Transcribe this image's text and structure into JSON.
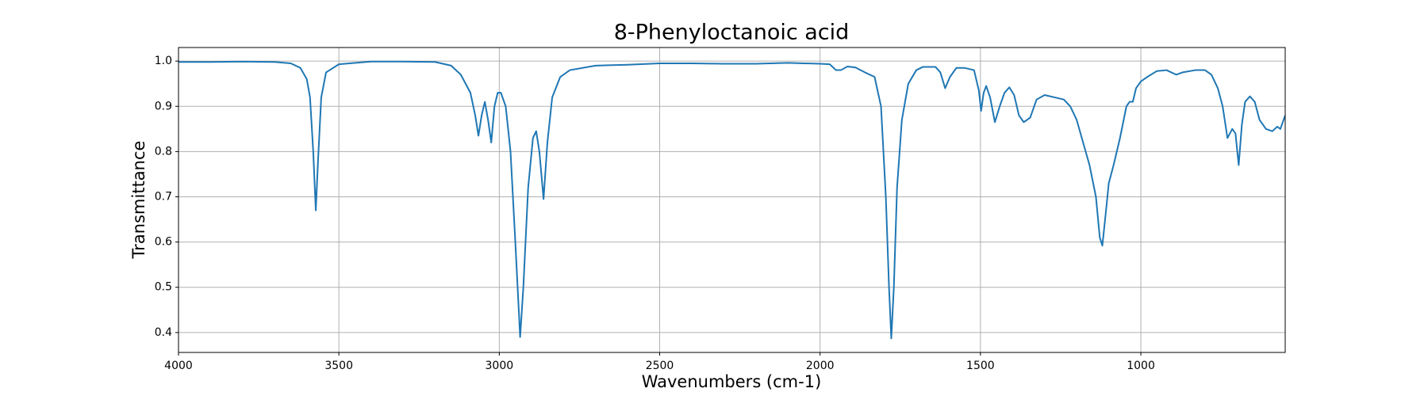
{
  "chart_data": {
    "type": "line",
    "title": "8-Phenyloctanoic acid",
    "x_label": "Wavenumbers (cm-1)",
    "y_label": "Transmittance",
    "color": "#1f77b4",
    "grid": true,
    "xlim": [
      4000,
      550
    ],
    "ylim": [
      0.356,
      1.03
    ],
    "xticks": [
      4000,
      3500,
      3000,
      2500,
      2000,
      1500,
      1000
    ],
    "yticks": [
      0.4,
      0.5,
      0.6,
      0.7,
      0.8,
      0.9,
      {
        "value": 1,
        "label": "1.0"
      }
    ],
    "x": [
      4000,
      3900,
      3800,
      3700,
      3650,
      3620,
      3600,
      3590,
      3580,
      3572,
      3565,
      3555,
      3540,
      3500,
      3400,
      3300,
      3200,
      3150,
      3120,
      3090,
      3075,
      3065,
      3055,
      3045,
      3035,
      3025,
      3015,
      3005,
      2995,
      2980,
      2965,
      2950,
      2935,
      2925,
      2910,
      2895,
      2885,
      2875,
      2862,
      2850,
      2835,
      2810,
      2780,
      2700,
      2600,
      2500,
      2400,
      2300,
      2200,
      2100,
      2000,
      1970,
      1950,
      1935,
      1915,
      1890,
      1860,
      1830,
      1810,
      1795,
      1785,
      1778,
      1770,
      1760,
      1745,
      1725,
      1700,
      1680,
      1640,
      1625,
      1610,
      1595,
      1575,
      1550,
      1520,
      1505,
      1498,
      1490,
      1482,
      1470,
      1455,
      1440,
      1425,
      1410,
      1395,
      1380,
      1365,
      1345,
      1325,
      1300,
      1270,
      1240,
      1220,
      1200,
      1180,
      1160,
      1140,
      1128,
      1120,
      1110,
      1100,
      1085,
      1065,
      1045,
      1035,
      1025,
      1015,
      1000,
      980,
      950,
      920,
      890,
      870,
      830,
      800,
      780,
      760,
      745,
      730,
      715,
      705,
      695,
      685,
      675,
      660,
      645,
      630,
      610,
      590,
      575,
      565,
      550
    ],
    "values": [
      0.998,
      0.998,
      0.999,
      0.998,
      0.995,
      0.985,
      0.96,
      0.92,
      0.8,
      0.67,
      0.78,
      0.92,
      0.975,
      0.993,
      0.999,
      0.999,
      0.998,
      0.99,
      0.97,
      0.93,
      0.88,
      0.835,
      0.88,
      0.91,
      0.87,
      0.82,
      0.9,
      0.93,
      0.93,
      0.9,
      0.8,
      0.6,
      0.39,
      0.5,
      0.72,
      0.83,
      0.845,
      0.8,
      0.695,
      0.82,
      0.92,
      0.965,
      0.98,
      0.99,
      0.992,
      0.995,
      0.995,
      0.994,
      0.994,
      0.996,
      0.994,
      0.993,
      0.98,
      0.98,
      0.988,
      0.986,
      0.975,
      0.965,
      0.9,
      0.7,
      0.5,
      0.387,
      0.5,
      0.72,
      0.87,
      0.95,
      0.98,
      0.987,
      0.987,
      0.975,
      0.94,
      0.965,
      0.985,
      0.985,
      0.98,
      0.935,
      0.89,
      0.93,
      0.945,
      0.92,
      0.865,
      0.9,
      0.93,
      0.942,
      0.925,
      0.88,
      0.865,
      0.875,
      0.915,
      0.925,
      0.92,
      0.915,
      0.9,
      0.87,
      0.82,
      0.77,
      0.7,
      0.61,
      0.592,
      0.66,
      0.73,
      0.77,
      0.83,
      0.9,
      0.91,
      0.91,
      0.94,
      0.955,
      0.965,
      0.978,
      0.98,
      0.97,
      0.975,
      0.98,
      0.98,
      0.97,
      0.94,
      0.9,
      0.83,
      0.85,
      0.84,
      0.77,
      0.86,
      0.91,
      0.922,
      0.91,
      0.87,
      0.85,
      0.845,
      0.855,
      0.85,
      0.88
    ]
  }
}
